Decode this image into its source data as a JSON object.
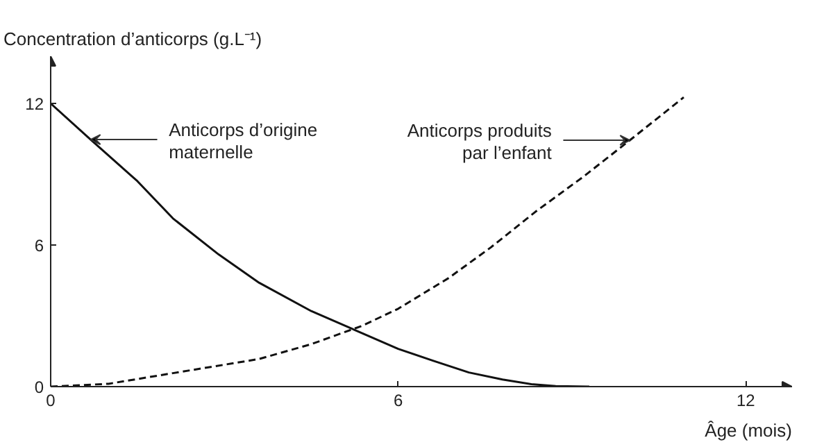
{
  "chart_data": {
    "type": "line",
    "ylabel": "Concentration d’anticorps (g.L⁻¹)",
    "xlabel": "Âge (mois)",
    "xlim": [
      0,
      12.8
    ],
    "xticks": [
      0,
      6,
      12
    ],
    "ylim": [
      0,
      14
    ],
    "yticks": [
      0,
      6,
      12
    ],
    "grid": false,
    "marker": "none",
    "series": [
      {
        "color": "#111111",
        "line_style": "solid",
        "x": [
          0,
          0.69,
          1.5,
          2.11,
          2.9,
          3.6,
          4.5,
          5.4,
          6.0,
          6.6,
          7.22,
          7.8,
          8.3,
          8.72,
          9.3
        ],
        "values": [
          12,
          10.47,
          8.7,
          7.13,
          5.6,
          4.4,
          3.2,
          2.24,
          1.6,
          1.1,
          0.6,
          0.3,
          0.1,
          0.02,
          0
        ]
      },
      {
        "color": "#111111",
        "line_style": "dashed",
        "x": [
          0,
          1.0,
          2.11,
          3.6,
          4.5,
          5.37,
          6.0,
          6.87,
          7.6,
          8.37,
          9.2,
          10.0,
          10.93
        ],
        "values": [
          0,
          0.12,
          0.57,
          1.17,
          1.8,
          2.57,
          3.3,
          4.6,
          5.9,
          7.41,
          8.9,
          10.44,
          12.26
        ]
      }
    ],
    "annotations": [
      {
        "text": "Anticorps d’origine\nmaternelle",
        "x": 0.69,
        "y": 10.47
      },
      {
        "text": "Anticorps produits\npar l’enfant",
        "x": 10.0,
        "y": 10.44
      }
    ]
  }
}
